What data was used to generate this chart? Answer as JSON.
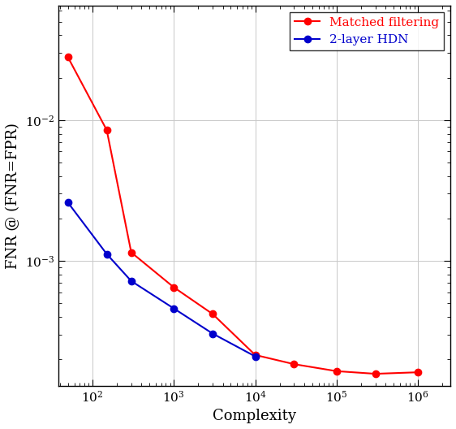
{
  "title": "",
  "xlabel": "Complexity",
  "ylabel": "FNR @ (FNR=FPR)",
  "red_x": [
    50,
    150,
    300,
    1000,
    3000,
    10000,
    30000,
    100000,
    300000,
    1000000
  ],
  "red_y": [
    0.028,
    0.0085,
    0.00115,
    0.00065,
    0.00042,
    0.000215,
    0.000185,
    0.000165,
    0.000158,
    0.000162
  ],
  "blue_x": [
    50,
    150,
    300,
    1000,
    3000,
    10000
  ],
  "blue_y": [
    0.0026,
    0.00112,
    0.00072,
    0.00046,
    0.000305,
    0.00021
  ],
  "red_color": "#ff0000",
  "blue_color": "#0000cc",
  "red_label": "Matched filtering",
  "blue_label": "2-layer HDN",
  "xlim": [
    38,
    2500000
  ],
  "ylim": [
    0.00013,
    0.065
  ],
  "marker": "o",
  "markersize": 6,
  "linewidth": 1.5,
  "grid_color": "#c8c8c8",
  "background_color": "#ffffff"
}
